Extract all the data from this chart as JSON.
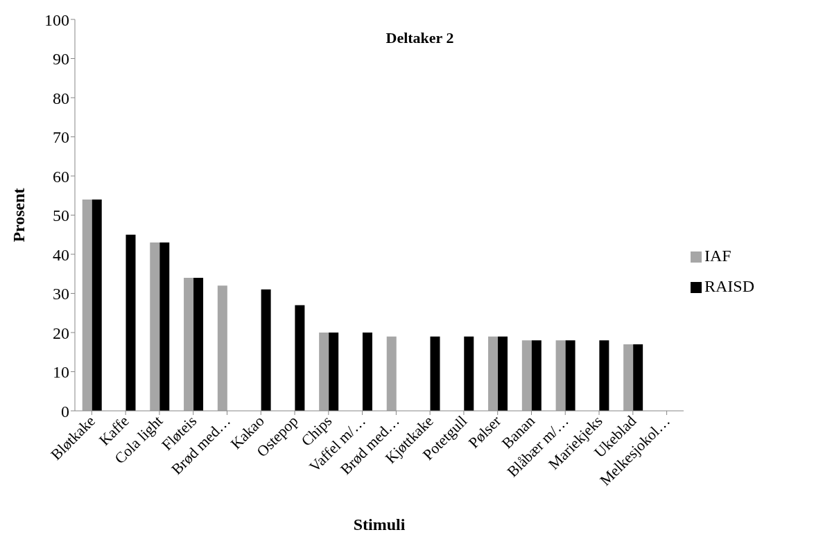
{
  "chart_data": {
    "type": "bar",
    "title": "Deltaker 2",
    "xlabel": "Stimuli",
    "ylabel": "Prosent",
    "categories": [
      "Bløtkake",
      "Kaffe",
      "Cola light",
      "Fløteis",
      "Brød med…",
      "Kakao",
      "Ostepop",
      "Chips",
      "Vaffel m/…",
      "Brød med…",
      "Kjøttkake",
      "Potetgull",
      "Pølser",
      "Banan",
      "Blåbær m/…",
      "Mariekjeks",
      "Ukeblad",
      "Melkesjokol…"
    ],
    "series": [
      {
        "name": "IAF",
        "color": "#a6a6a6",
        "values": [
          54,
          null,
          43,
          34,
          32,
          null,
          null,
          20,
          null,
          19,
          null,
          null,
          19,
          18,
          18,
          null,
          17,
          null
        ]
      },
      {
        "name": "RAISD",
        "color": "#000000",
        "values": [
          54,
          45,
          43,
          34,
          null,
          31,
          27,
          20,
          20,
          null,
          19,
          19,
          19,
          18,
          18,
          18,
          17,
          null
        ]
      }
    ],
    "ylim": [
      0,
      100
    ],
    "yticks": [
      0,
      10,
      20,
      30,
      40,
      50,
      60,
      70,
      80,
      90,
      100
    ],
    "grid": false,
    "legend": "right"
  }
}
